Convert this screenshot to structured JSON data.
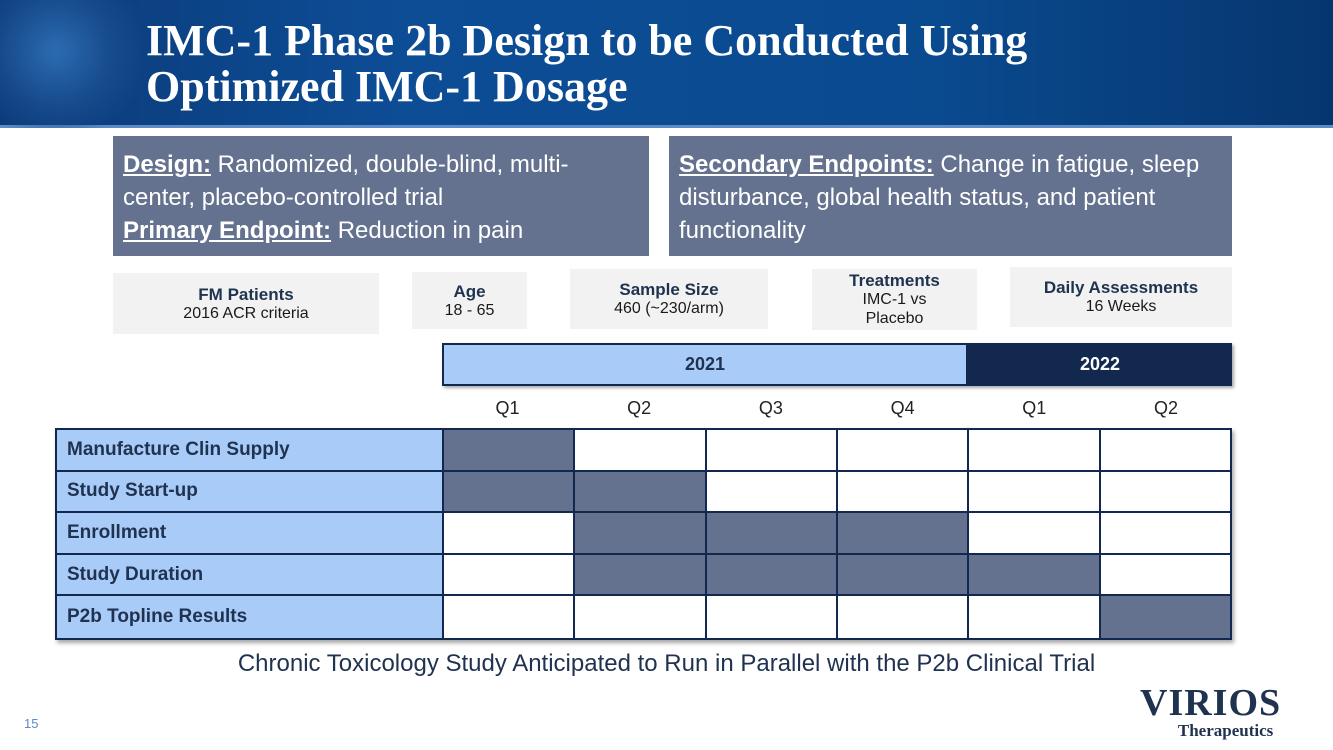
{
  "title_line1": "IMC-1 Phase 2b Design to be Conducted Using",
  "title_line2": "Optimized IMC-1 Dosage",
  "design": {
    "design_label": "Design:",
    "design_text": " Randomized, double-blind, multi-center, placebo-controlled trial",
    "primary_label": "Primary Endpoint:",
    "primary_text": " Reduction in pain"
  },
  "secondary": {
    "label": "Secondary Endpoints:",
    "text": " Change in fatigue, sleep disturbance, global health status, and patient functionality"
  },
  "info": [
    {
      "title": "FM Patients",
      "value": "2016 ACR criteria"
    },
    {
      "title": "Age",
      "value": "18 - 65"
    },
    {
      "title": "Sample Size",
      "value": "460 (~230/arm)"
    },
    {
      "title": "Treatments",
      "value": "IMC-1 vs Placebo"
    },
    {
      "title": "Daily Assessments",
      "value": "16 Weeks"
    }
  ],
  "years": [
    "2021",
    "2022"
  ],
  "quarters": [
    "Q1",
    "Q2",
    "Q3",
    "Q4",
    "Q1",
    "Q2"
  ],
  "rows": [
    {
      "label": "Manufacture Clin Supply",
      "active": [
        1,
        0,
        0,
        0,
        0,
        0
      ]
    },
    {
      "label": "Study Start-up",
      "active": [
        1,
        1,
        0,
        0,
        0,
        0
      ]
    },
    {
      "label": "Enrollment",
      "active": [
        0,
        1,
        1,
        1,
        0,
        0
      ]
    },
    {
      "label": "Study Duration",
      "active": [
        0,
        1,
        1,
        1,
        1,
        0
      ]
    },
    {
      "label": "P2b Topline Results",
      "active": [
        0,
        0,
        0,
        0,
        0,
        1
      ]
    }
  ],
  "footer": "Chronic Toxicology Study Anticipated to Run in Parallel with the P2b Clinical Trial",
  "page_number": "15",
  "logo": {
    "name": "VIRIOS",
    "sub": "Therapeutics"
  },
  "colors": {
    "fill": "#64728f",
    "light": "#a9cbf8",
    "dark": "#13284f"
  }
}
